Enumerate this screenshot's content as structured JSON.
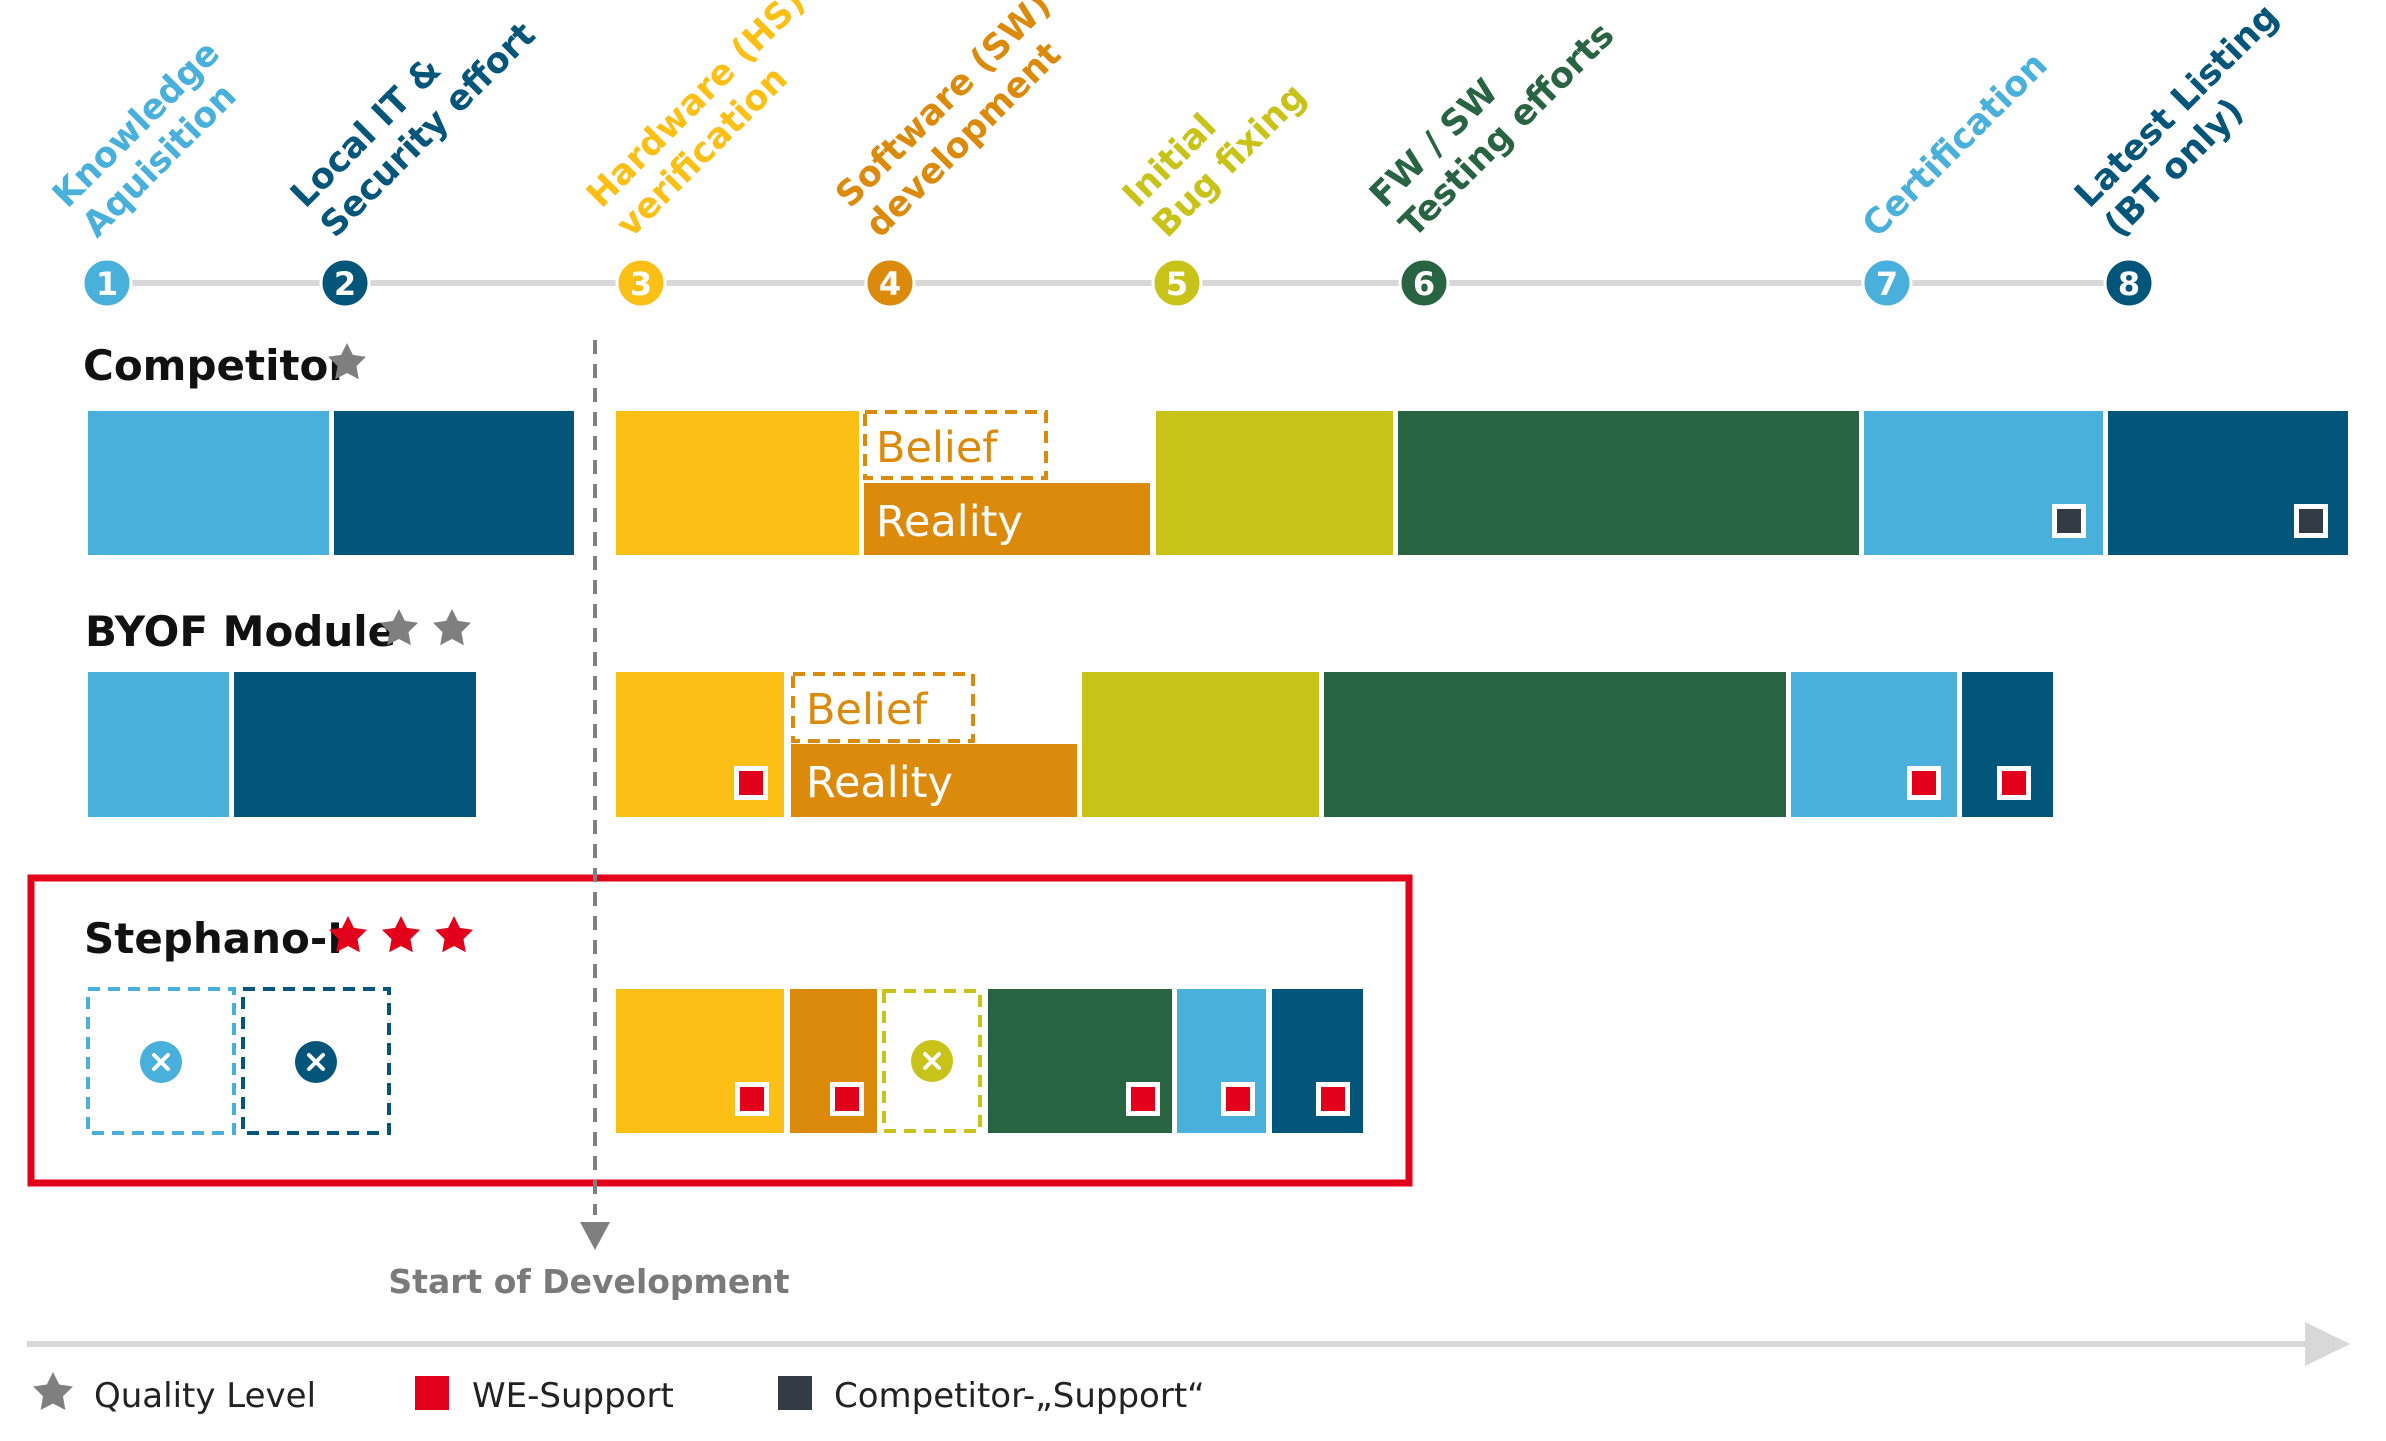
{
  "colors": {
    "knowledge": "#49b0dc",
    "local_it": "#03557a",
    "hardware": "#fbbf15",
    "software": "#db8a0c",
    "bug_fixing": "#c9c218",
    "testing": "#286342",
    "certification": "#49b0dc",
    "listing": "#03557a",
    "we_support": "#e2001a",
    "competitor_support": "#333b44",
    "star_gray": "#7f7f7f",
    "star_red": "#e2001a",
    "axis": "#d8d8d8",
    "highlight_frame": "#e2001a",
    "dash_line": "#7f7f7f",
    "text_dark": "#111111",
    "text_gray": "#7a7a7a"
  },
  "phases": [
    {
      "number": "1",
      "label_lines": [
        "Knowledge",
        "Aquisition"
      ],
      "color_key": "knowledge"
    },
    {
      "number": "2",
      "label_lines": [
        "Local IT &",
        "Security effort"
      ],
      "color_key": "local_it"
    },
    {
      "number": "3",
      "label_lines": [
        "Hardware (HS)",
        "verification"
      ],
      "color_key": "hardware"
    },
    {
      "number": "4",
      "label_lines": [
        "Software (SW)",
        "development"
      ],
      "color_key": "software"
    },
    {
      "number": "5",
      "label_lines": [
        "Initial",
        "Bug fixing"
      ],
      "color_key": "bug_fixing"
    },
    {
      "number": "6",
      "label_lines": [
        "FW / SW",
        "Testing efforts"
      ],
      "color_key": "testing"
    },
    {
      "number": "7",
      "label_lines": [
        "Certification"
      ],
      "color_key": "certification"
    },
    {
      "number": "8",
      "label_lines": [
        "Latest Listing",
        "(BT only)"
      ],
      "color_key": "listing"
    }
  ],
  "rows": [
    {
      "name": "Competitor",
      "stars": 1,
      "star_color_key": "star_gray"
    },
    {
      "name": "BYOF Module",
      "stars": 2,
      "star_color_key": "star_gray"
    },
    {
      "name": "Stephano-I",
      "stars": 3,
      "star_color_key": "star_red"
    }
  ],
  "bar_labels": {
    "belief": "Belief",
    "reality": "Reality"
  },
  "start_label": "Start of Development",
  "legend": {
    "quality": "Quality Level",
    "we_support": "WE-Support",
    "competitor_support": "Competitor-„Support“"
  }
}
